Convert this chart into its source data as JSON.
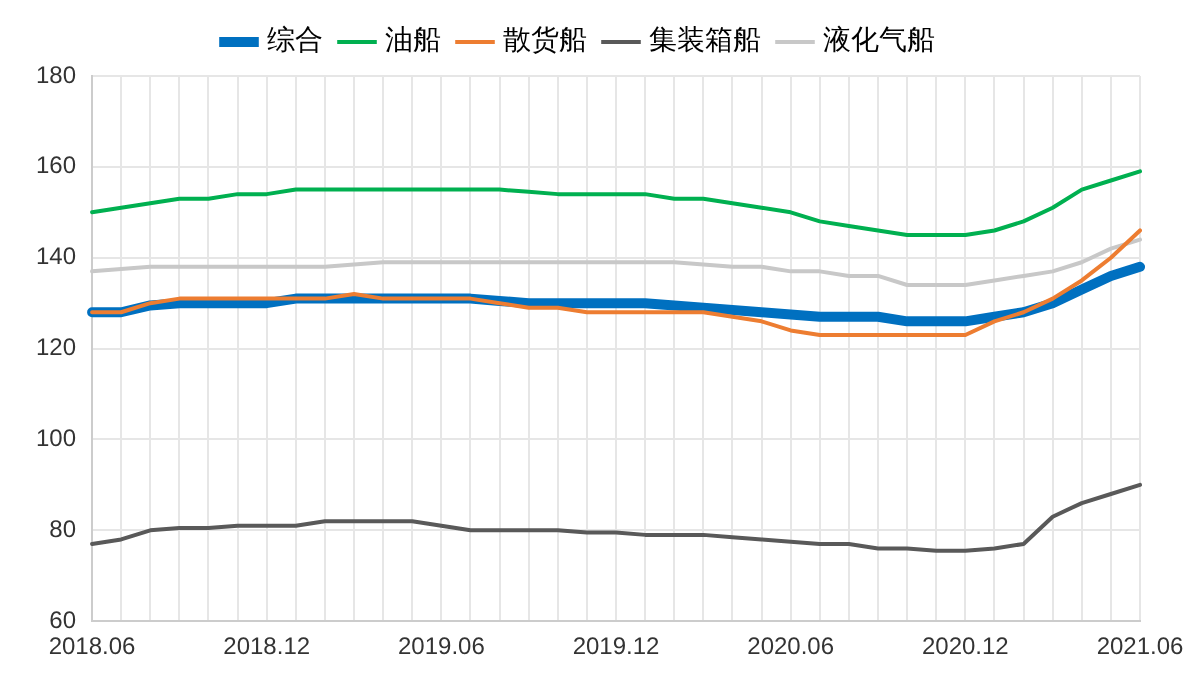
{
  "chart_data": {
    "type": "line",
    "categories": [
      "2018.06",
      null,
      null,
      null,
      null,
      null,
      "2018.12",
      null,
      null,
      null,
      null,
      null,
      "2019.06",
      null,
      null,
      null,
      null,
      null,
      "2019.12",
      null,
      null,
      null,
      null,
      null,
      "2020.06",
      null,
      null,
      null,
      null,
      null,
      "2020.12",
      null,
      null,
      null,
      null,
      null,
      "2021.06"
    ],
    "series": [
      {
        "name": "综合",
        "color": "#0070c0",
        "values": [
          128,
          128,
          129.5,
          130,
          130,
          130,
          130,
          131,
          131,
          131,
          131,
          131,
          131,
          131,
          130.5,
          130,
          130,
          130,
          130,
          130,
          129.5,
          129,
          128.5,
          128,
          127.5,
          127,
          127,
          127,
          126,
          126,
          126,
          127,
          128,
          130,
          133,
          136,
          138
        ]
      },
      {
        "name": "油船",
        "color": "#00b050",
        "values": [
          150,
          151,
          152,
          153,
          153,
          154,
          154,
          155,
          155,
          155,
          155,
          155,
          155,
          155,
          155,
          154.5,
          154,
          154,
          154,
          154,
          153,
          153,
          152,
          151,
          150,
          148,
          147,
          146,
          145,
          145,
          145,
          146,
          148,
          151,
          155,
          157,
          159
        ]
      },
      {
        "name": "散货船",
        "color": "#ed7d31",
        "values": [
          128,
          128,
          130,
          131,
          131,
          131,
          131,
          131,
          131,
          132,
          131,
          131,
          131,
          131,
          130,
          129,
          129,
          128,
          128,
          128,
          128,
          128,
          127,
          126,
          124,
          123,
          123,
          123,
          123,
          123,
          123,
          126,
          128,
          131,
          135,
          140,
          146
        ]
      },
      {
        "name": "集装箱船",
        "color": "#595959",
        "values": [
          77,
          78,
          80,
          80.5,
          80.5,
          81,
          81,
          81,
          82,
          82,
          82,
          82,
          81,
          80,
          80,
          80,
          80,
          79.5,
          79.5,
          79,
          79,
          79,
          78.5,
          78,
          77.5,
          77,
          77,
          76,
          76,
          75.5,
          75.5,
          76,
          77,
          83,
          86,
          88,
          90
        ]
      },
      {
        "name": "液化气船",
        "color": "#c8c8c8",
        "values": [
          137,
          137.5,
          138,
          138,
          138,
          138,
          138,
          138,
          138,
          138.5,
          139,
          139,
          139,
          139,
          139,
          139,
          139,
          139,
          139,
          139,
          139,
          138.5,
          138,
          138,
          137,
          137,
          136,
          136,
          134,
          134,
          134,
          135,
          136,
          137,
          139,
          142,
          144
        ]
      }
    ],
    "ylim": [
      60,
      180
    ],
    "yticks": [
      60,
      80,
      100,
      120,
      140,
      160,
      180
    ],
    "grid": true,
    "legend": "top",
    "marker": "none",
    "line_style": "solid"
  }
}
